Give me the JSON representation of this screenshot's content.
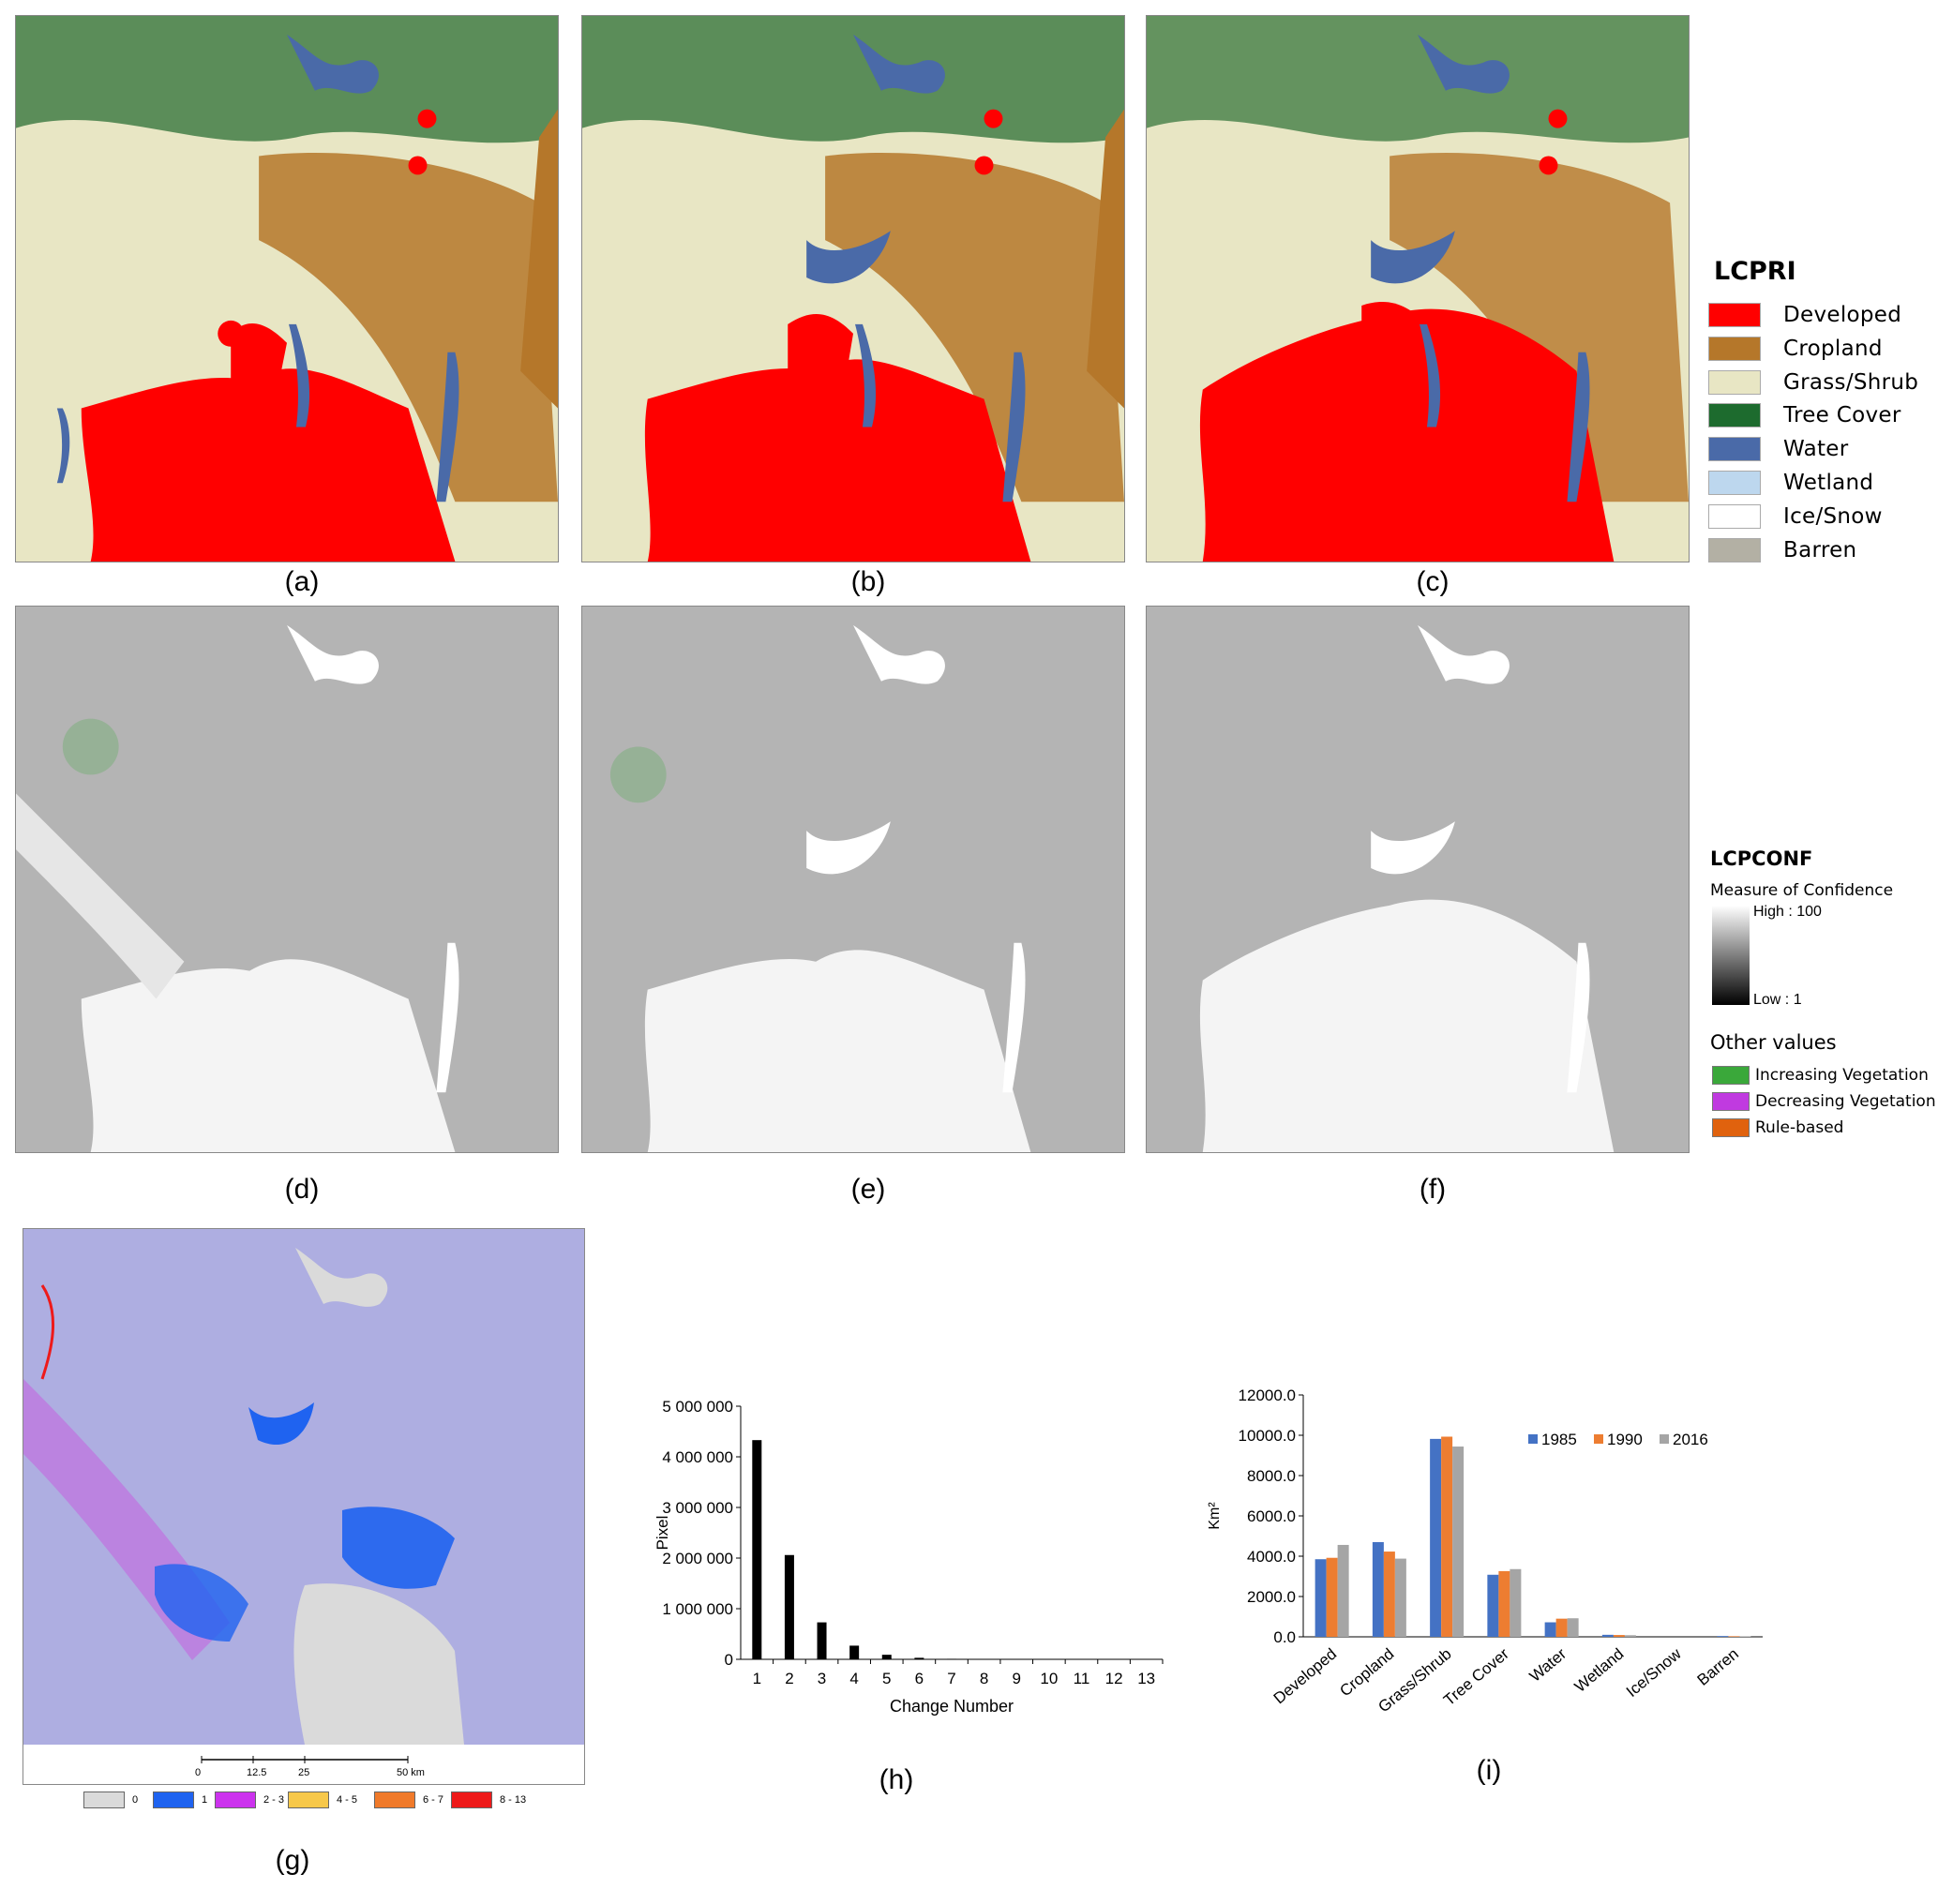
{
  "captions": {
    "a": "(a)",
    "b": "(b)",
    "c": "(c)",
    "d": "(d)",
    "e": "(e)",
    "f": "(f)",
    "g": "(g)",
    "h": "(h)",
    "i": "(i)"
  },
  "lcpri_legend": {
    "title": "LCPRI",
    "items": [
      {
        "label": "Developed",
        "color": "#ff0000"
      },
      {
        "label": "Cropland",
        "color": "#b5772a"
      },
      {
        "label": "Grass/Shrub",
        "color": "#e8e6c4"
      },
      {
        "label": "Tree Cover",
        "color": "#1d6b2e"
      },
      {
        "label": "Water",
        "color": "#4a6aa8"
      },
      {
        "label": "Wetland",
        "color": "#bdd7ee"
      },
      {
        "label": "Ice/Snow",
        "color": "#ffffff"
      },
      {
        "label": "Barren",
        "color": "#b3b0a4"
      }
    ]
  },
  "lcpconf_legend": {
    "title": "LCPCONF",
    "subtitle": "Measure of Confidence",
    "high_label": "High : 100",
    "low_label": "Low : 1",
    "other_title": "Other values",
    "other_items": [
      {
        "label": "Increasing Vegetation",
        "color": "#3aa83a"
      },
      {
        "label": "Decreasing Vegetation",
        "color": "#c03ae0"
      },
      {
        "label": "Rule-based",
        "color": "#e0620e"
      }
    ]
  },
  "change_map": {
    "scale_ticks": [
      "0",
      "12.5",
      "25",
      "50 km"
    ],
    "legend": [
      {
        "label": "0",
        "color": "#dadada"
      },
      {
        "label": "1",
        "color": "#1f63f0"
      },
      {
        "label": "2 - 3",
        "color": "#cc33ee"
      },
      {
        "label": "4 - 5",
        "color": "#f7c84a"
      },
      {
        "label": "6 - 7",
        "color": "#f07a2a"
      },
      {
        "label": "8 - 13",
        "color": "#ee1a1a"
      }
    ]
  },
  "chart_data": [
    {
      "type": "bar",
      "xlabel": "Change Number",
      "ylabel": "Pixel",
      "categories": [
        "1",
        "2",
        "3",
        "4",
        "5",
        "6",
        "7",
        "8",
        "9",
        "10",
        "11",
        "12",
        "13"
      ],
      "values": [
        4330000,
        2060000,
        730000,
        270000,
        90000,
        30000,
        10000,
        4000,
        2000,
        1000,
        500,
        200,
        100
      ],
      "ylim": [
        0,
        5000000
      ],
      "yticks": [
        "0",
        "1 000 000",
        "2 000 000",
        "3 000 000",
        "4 000 000",
        "5 000 000"
      ],
      "color": "#000000"
    },
    {
      "type": "bar",
      "xlabel": "",
      "ylabel": "Km²",
      "categories": [
        "Developed",
        "Cropland",
        "Grass/Shrub",
        "Tree Cover",
        "Water",
        "Wetland",
        "Ice/Snow",
        "Barren"
      ],
      "series": [
        {
          "name": "1985",
          "color": "#4472c4",
          "values": [
            3850,
            4700,
            9820,
            3080,
            720,
            100,
            0,
            40
          ]
        },
        {
          "name": "1990",
          "color": "#ed7d31",
          "values": [
            3920,
            4230,
            9930,
            3260,
            900,
            90,
            0,
            30
          ]
        },
        {
          "name": "2016",
          "color": "#a5a5a5",
          "values": [
            4560,
            3880,
            9440,
            3360,
            920,
            80,
            0,
            25
          ]
        }
      ],
      "ylim": [
        0,
        12000
      ],
      "yticks": [
        "0.0",
        "2000.0",
        "4000.0",
        "6000.0",
        "8000.0",
        "10000.0",
        "12000.0"
      ],
      "legend_placement": "top-right"
    }
  ]
}
